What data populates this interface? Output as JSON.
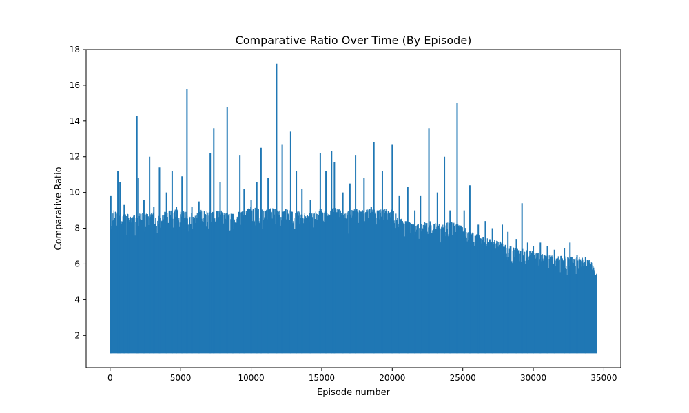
{
  "chart_data": {
    "type": "line",
    "title": "Comparative Ratio Over Time (By Episode)",
    "xlabel": "Episode number",
    "ylabel": "Comparative Ratio",
    "xlim": [
      -1700,
      36200
    ],
    "ylim": [
      0.2,
      18
    ],
    "xticks": [
      0,
      5000,
      10000,
      15000,
      20000,
      25000,
      30000,
      35000
    ],
    "yticks": [
      2,
      4,
      6,
      8,
      10,
      12,
      14,
      16,
      18
    ],
    "grid": false,
    "legend": "none",
    "series_color": "#1f77b4",
    "series": [
      {
        "x_range": [
          0,
          34500
        ],
        "baseline": 1.0,
        "envelope": [
          [
            0,
            8.3
          ],
          [
            300,
            9.2
          ],
          [
            600,
            8.8
          ],
          [
            1000,
            9.0
          ],
          [
            1500,
            8.6
          ],
          [
            2000,
            9.0
          ],
          [
            2500,
            8.8
          ],
          [
            3000,
            8.9
          ],
          [
            3500,
            8.7
          ],
          [
            4000,
            9.0
          ],
          [
            4500,
            9.1
          ],
          [
            5000,
            9.0
          ],
          [
            5500,
            8.9
          ],
          [
            6000,
            8.8
          ],
          [
            6500,
            9.1
          ],
          [
            7000,
            8.9
          ],
          [
            7500,
            9.0
          ],
          [
            8000,
            9.0
          ],
          [
            8500,
            8.8
          ],
          [
            9000,
            8.9
          ],
          [
            9500,
            9.0
          ],
          [
            10000,
            9.2
          ],
          [
            10500,
            9.1
          ],
          [
            11000,
            9.0
          ],
          [
            11500,
            9.2
          ],
          [
            12000,
            9.0
          ],
          [
            12500,
            9.1
          ],
          [
            13000,
            8.9
          ],
          [
            13500,
            9.0
          ],
          [
            14000,
            8.8
          ],
          [
            14500,
            9.0
          ],
          [
            15000,
            9.1
          ],
          [
            15500,
            9.0
          ],
          [
            16000,
            9.2
          ],
          [
            16500,
            8.9
          ],
          [
            17000,
            9.0
          ],
          [
            17500,
            9.1
          ],
          [
            18000,
            9.0
          ],
          [
            18500,
            9.2
          ],
          [
            19000,
            9.0
          ],
          [
            19500,
            9.2
          ],
          [
            20000,
            9.1
          ],
          [
            20500,
            8.6
          ],
          [
            21000,
            8.4
          ],
          [
            21500,
            8.3
          ],
          [
            22000,
            8.2
          ],
          [
            22500,
            8.5
          ],
          [
            23000,
            8.3
          ],
          [
            23500,
            8.2
          ],
          [
            24000,
            8.4
          ],
          [
            24500,
            8.3
          ],
          [
            25000,
            8.1
          ],
          [
            25500,
            7.9
          ],
          [
            26000,
            7.7
          ],
          [
            26500,
            7.5
          ],
          [
            27000,
            7.4
          ],
          [
            27500,
            7.3
          ],
          [
            28000,
            7.2
          ],
          [
            28500,
            7.0
          ],
          [
            29000,
            6.9
          ],
          [
            29500,
            6.8
          ],
          [
            30000,
            6.7
          ],
          [
            30500,
            6.6
          ],
          [
            31000,
            6.5
          ],
          [
            31500,
            6.5
          ],
          [
            32000,
            6.45
          ],
          [
            32500,
            6.4
          ],
          [
            33000,
            6.4
          ],
          [
            33500,
            6.35
          ],
          [
            34000,
            6.3
          ],
          [
            34500,
            5.5
          ]
        ],
        "spikes": [
          [
            50,
            9.8
          ],
          [
            550,
            11.2
          ],
          [
            700,
            10.6
          ],
          [
            1000,
            9.3
          ],
          [
            1300,
            8.6
          ],
          [
            1900,
            14.3
          ],
          [
            2000,
            10.8
          ],
          [
            2400,
            9.6
          ],
          [
            2800,
            12.0
          ],
          [
            3100,
            9.2
          ],
          [
            3500,
            11.4
          ],
          [
            4000,
            10.0
          ],
          [
            4400,
            11.2
          ],
          [
            4700,
            9.2
          ],
          [
            5100,
            10.9
          ],
          [
            5450,
            15.8
          ],
          [
            5800,
            9.2
          ],
          [
            6300,
            9.5
          ],
          [
            7100,
            12.2
          ],
          [
            7350,
            13.6
          ],
          [
            7800,
            10.6
          ],
          [
            8300,
            14.8
          ],
          [
            8700,
            8.8
          ],
          [
            9200,
            12.1
          ],
          [
            9500,
            10.2
          ],
          [
            10000,
            9.6
          ],
          [
            10400,
            10.6
          ],
          [
            10700,
            12.5
          ],
          [
            11200,
            10.8
          ],
          [
            11800,
            17.2
          ],
          [
            12200,
            12.7
          ],
          [
            12800,
            13.4
          ],
          [
            13200,
            11.2
          ],
          [
            13600,
            10.2
          ],
          [
            14200,
            9.6
          ],
          [
            14900,
            12.2
          ],
          [
            15300,
            11.2
          ],
          [
            15700,
            12.3
          ],
          [
            15900,
            11.7
          ],
          [
            16500,
            10.0
          ],
          [
            17000,
            10.5
          ],
          [
            17400,
            12.1
          ],
          [
            18000,
            10.8
          ],
          [
            18700,
            12.8
          ],
          [
            19300,
            11.2
          ],
          [
            20000,
            12.7
          ],
          [
            20500,
            9.8
          ],
          [
            21100,
            10.3
          ],
          [
            21600,
            9.0
          ],
          [
            22000,
            9.8
          ],
          [
            22600,
            13.6
          ],
          [
            23200,
            10.0
          ],
          [
            23700,
            12.0
          ],
          [
            24100,
            9.0
          ],
          [
            24600,
            15.0
          ],
          [
            25100,
            9.0
          ],
          [
            25500,
            10.4
          ],
          [
            26100,
            8.2
          ],
          [
            26600,
            8.4
          ],
          [
            27100,
            8.0
          ],
          [
            27800,
            8.2
          ],
          [
            28200,
            7.8
          ],
          [
            28800,
            7.4
          ],
          [
            29200,
            9.4
          ],
          [
            29600,
            7.2
          ],
          [
            30000,
            7.0
          ],
          [
            30500,
            7.2
          ],
          [
            31000,
            7.0
          ],
          [
            31500,
            6.8
          ],
          [
            32200,
            6.9
          ],
          [
            32600,
            7.2
          ],
          [
            33100,
            6.5
          ],
          [
            33700,
            6.4
          ]
        ]
      }
    ]
  }
}
